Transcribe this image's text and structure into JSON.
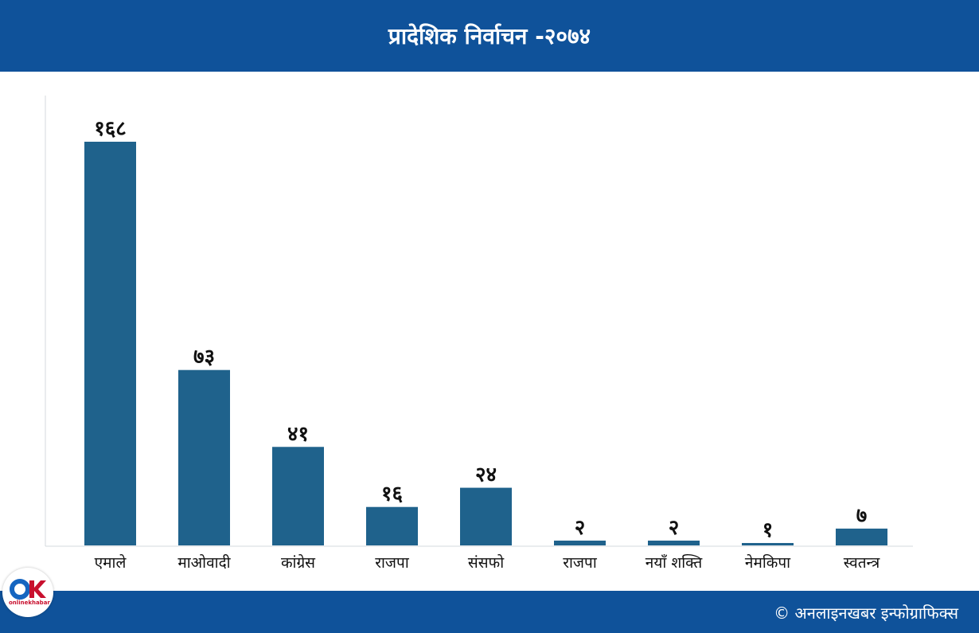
{
  "header": {
    "title": "प्रादेशिक निर्वाचन -२०७४"
  },
  "footer": {
    "credit": "© अनलाइनखबर इन्फोग्राफिक्स"
  },
  "logo": {
    "text": "onlinekhabar"
  },
  "colors": {
    "bar": "#1f628c",
    "header": "#0f529a",
    "axis": "#d4d8dc"
  },
  "chart_data": {
    "type": "bar",
    "categories": [
      "एमाले",
      "माओवादी",
      "कांग्रेस",
      "राजपा",
      "संसफो",
      "राजपा",
      "नयाँ  शक्ति",
      "नेमकिपा",
      "स्वतन्त्र"
    ],
    "values": [
      168,
      73,
      41,
      16,
      24,
      2,
      2,
      1,
      7
    ],
    "value_labels": [
      "१६८",
      "७३",
      "४१",
      "१६",
      "२४",
      "२",
      "२",
      "१",
      "७"
    ],
    "ylim": [
      0,
      168
    ],
    "grid": false
  }
}
